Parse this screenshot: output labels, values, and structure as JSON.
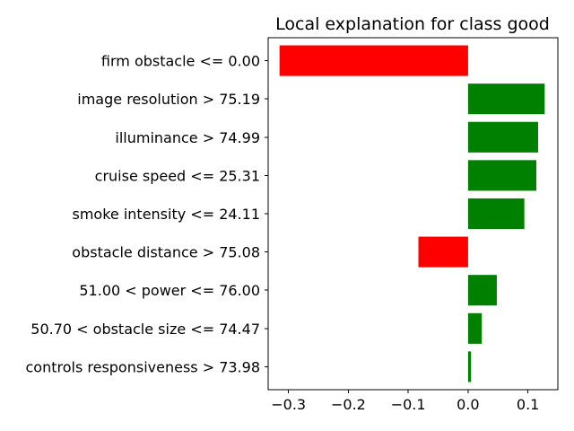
{
  "chart_data": {
    "type": "bar",
    "orientation": "horizontal",
    "title": "Local explanation for class good",
    "xlabel": "",
    "ylabel": "",
    "xlim": [
      -0.334,
      0.15
    ],
    "xticks": [
      -0.3,
      -0.2,
      -0.1,
      0.0,
      0.1
    ],
    "xtick_labels": [
      "−0.3",
      "−0.2",
      "−0.1",
      "0.0",
      "0.1"
    ],
    "grid": false,
    "positive_color": "#008000",
    "negative_color": "#ff0000",
    "categories": [
      "firm obstacle <= 0.00",
      "image resolution > 75.19",
      "illuminance > 74.99",
      "cruise speed <= 25.31",
      "smoke intensity <= 24.11",
      "obstacle distance > 75.08",
      "51.00 < power <= 76.00",
      "50.70 < obstacle size <= 74.47",
      "controls responsiveness > 73.98"
    ],
    "values": [
      -0.315,
      0.128,
      0.117,
      0.114,
      0.094,
      -0.083,
      0.048,
      0.023,
      0.005
    ]
  }
}
